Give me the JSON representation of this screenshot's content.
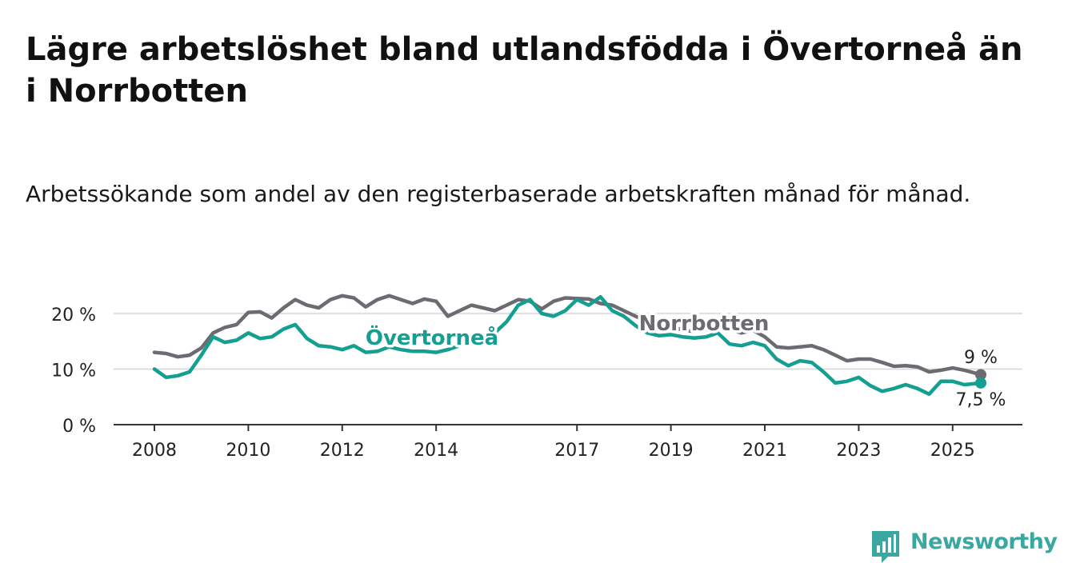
{
  "title": "Lägre arbetslöshet bland utlandsfödda i Övertorneå än i Norrbotten",
  "subtitle": "Arbetssökande som andel av den registerbaserade arbetskraften månad för månad.",
  "brand": {
    "name": "Newsworthy",
    "logo_icon": "newsworthy-bar-chart-logo",
    "color": "#3aa8a0"
  },
  "chart_data": {
    "type": "line",
    "title": "Lägre arbetslöshet bland utlandsfödda i Övertorneå än i Norrbotten",
    "subtitle": "Arbetssökande som andel av den registerbaserade arbetskraften månad för månad.",
    "xlabel": "",
    "ylabel": "",
    "xlim": [
      2008,
      2025.6
    ],
    "ylim": [
      0,
      20
    ],
    "x_ticks": [
      2008,
      2010,
      2012,
      2014,
      2017,
      2019,
      2021,
      2023,
      2025
    ],
    "x_tick_labels": [
      "2008",
      "2010",
      "2012",
      "2014",
      "2017",
      "2019",
      "2021",
      "2023",
      "2025"
    ],
    "y_ticks": [
      0,
      10,
      20
    ],
    "y_tick_labels": [
      "0 %",
      "10 %",
      "20 %"
    ],
    "grid": true,
    "legend": "none (direct labels on lines)",
    "series": [
      {
        "name": "Norrbotten",
        "color": "#6e6a72",
        "end_label": "9 %",
        "x": [
          2008,
          2008.25,
          2008.5,
          2008.75,
          2009,
          2009.25,
          2009.5,
          2009.75,
          2010,
          2010.25,
          2010.5,
          2010.75,
          2011,
          2011.25,
          2011.5,
          2011.75,
          2012,
          2012.25,
          2012.5,
          2012.75,
          2013,
          2013.25,
          2013.5,
          2013.75,
          2014,
          2014.25,
          2014.5,
          2014.75,
          2015,
          2015.25,
          2015.5,
          2015.75,
          2016,
          2016.25,
          2016.5,
          2016.75,
          2017,
          2017.25,
          2017.5,
          2017.75,
          2018,
          2018.25,
          2018.5,
          2018.75,
          2019,
          2019.25,
          2019.5,
          2019.75,
          2020,
          2020.25,
          2020.5,
          2020.75,
          2021,
          2021.25,
          2021.5,
          2021.75,
          2022,
          2022.25,
          2022.5,
          2022.75,
          2023,
          2023.25,
          2023.5,
          2023.75,
          2024,
          2024.25,
          2024.5,
          2024.75,
          2025,
          2025.25,
          2025.6
        ],
        "y": [
          13,
          12.8,
          12.2,
          12.5,
          13.8,
          16.5,
          17.5,
          18,
          20.2,
          20.3,
          19.2,
          21,
          22.5,
          21.5,
          21,
          22.5,
          23.2,
          22.8,
          21.2,
          22.5,
          23.2,
          22.5,
          21.8,
          22.6,
          22.2,
          19.5,
          20.5,
          21.5,
          21,
          20.5,
          21.5,
          22.5,
          22.2,
          20.8,
          22.2,
          22.8,
          22.7,
          22.6,
          21.8,
          21.5,
          20.5,
          19.5,
          18.5,
          18.5,
          17.8,
          17,
          16.8,
          17.2,
          17.8,
          17.2,
          16.5,
          17,
          15.8,
          14,
          13.8,
          14,
          14.2,
          13.5,
          12.5,
          11.5,
          11.8,
          11.8,
          11.2,
          10.5,
          10.6,
          10.4,
          9.5,
          9.8,
          10.2,
          9.8,
          9
        ]
      },
      {
        "name": "Övertorneå",
        "color": "#159e92",
        "end_label": "7,5 %",
        "x": [
          2008,
          2008.25,
          2008.5,
          2008.75,
          2009,
          2009.25,
          2009.5,
          2009.75,
          2010,
          2010.25,
          2010.5,
          2010.75,
          2011,
          2011.25,
          2011.5,
          2011.75,
          2012,
          2012.25,
          2012.5,
          2012.75,
          2013,
          2013.25,
          2013.5,
          2013.75,
          2014,
          2014.25,
          2014.5,
          2014.75,
          2015,
          2015.25,
          2015.5,
          2015.75,
          2016,
          2016.25,
          2016.5,
          2016.75,
          2017,
          2017.25,
          2017.5,
          2017.75,
          2018,
          2018.25,
          2018.5,
          2018.75,
          2019,
          2019.25,
          2019.5,
          2019.75,
          2020,
          2020.25,
          2020.5,
          2020.75,
          2021,
          2021.25,
          2021.5,
          2021.75,
          2022,
          2022.25,
          2022.5,
          2022.75,
          2023,
          2023.25,
          2023.5,
          2023.75,
          2024,
          2024.25,
          2024.5,
          2024.75,
          2025,
          2025.25,
          2025.6
        ],
        "y": [
          10,
          8.5,
          8.8,
          9.5,
          12.5,
          15.8,
          14.8,
          15.2,
          16.5,
          15.5,
          15.8,
          17.2,
          18,
          15.5,
          14.2,
          14,
          13.5,
          14.2,
          13,
          13.2,
          14,
          13.5,
          13.2,
          13.2,
          13,
          13.5,
          14.2,
          14.8,
          15.2,
          16.5,
          18.5,
          21.5,
          22.5,
          20,
          19.5,
          20.5,
          22.5,
          21.5,
          23,
          20.5,
          19.5,
          17.8,
          16.5,
          16,
          16.2,
          15.8,
          15.6,
          15.8,
          16.5,
          14.5,
          14.2,
          14.8,
          14.2,
          11.8,
          10.6,
          11.5,
          11.2,
          9.5,
          7.5,
          7.8,
          8.5,
          7,
          6,
          6.5,
          7.2,
          6.5,
          5.5,
          7.8,
          7.8,
          7.2,
          7.5
        ]
      }
    ],
    "annotations": [
      "Norrbotten",
      "Övertorneå",
      "9 %",
      "7,5 %"
    ]
  }
}
